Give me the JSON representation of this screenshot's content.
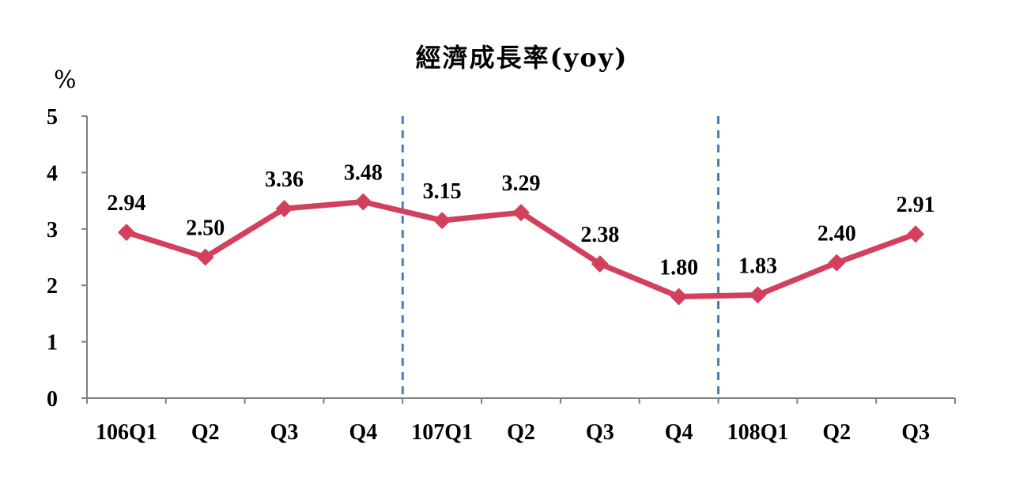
{
  "chart_data": {
    "type": "line",
    "title": "經濟成長率(yoy)",
    "ylabel": "%",
    "xlabel": "",
    "categories": [
      "106Q1",
      "Q2",
      "Q3",
      "Q4",
      "107Q1",
      "Q2",
      "Q3",
      "Q4",
      "108Q1",
      "Q2",
      "Q3"
    ],
    "series": [
      {
        "values": [
          2.94,
          2.5,
          3.36,
          3.48,
          3.15,
          3.29,
          2.38,
          1.8,
          1.83,
          2.4,
          2.91
        ],
        "labels": [
          "2.94",
          "2.50",
          "3.36",
          "3.48",
          "3.15",
          "3.29",
          "2.38",
          "1.80",
          "1.83",
          "2.40",
          "2.91"
        ]
      }
    ],
    "ylim": [
      0,
      5
    ],
    "yticks": [
      "0",
      "1",
      "2",
      "3",
      "4",
      "5"
    ],
    "year_dividers_after_index": [
      3,
      7
    ],
    "grid": false,
    "colors": {
      "line": "#d2405c",
      "axis": "#7f7f7f",
      "divider": "#4a7ebb"
    }
  }
}
